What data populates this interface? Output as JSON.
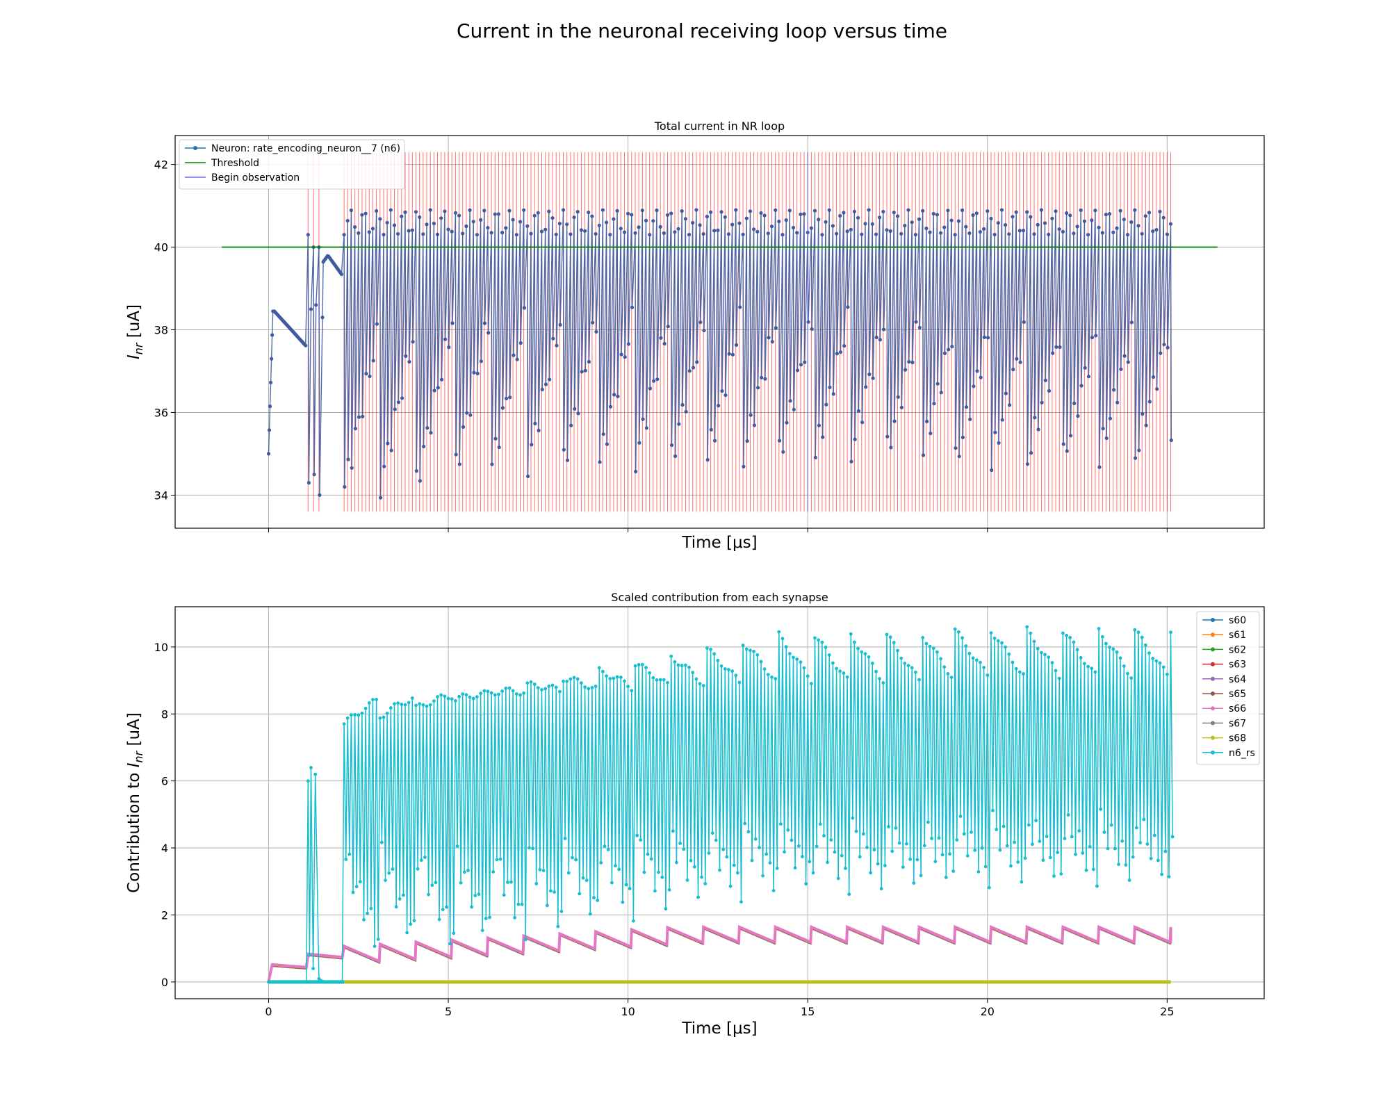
{
  "figure": {
    "title": "Current in the neuronal receiving loop versus time"
  },
  "chart_data": [
    {
      "type": "line",
      "title": "Total current in NR loop",
      "xlabel": "Time [μs]",
      "ylabel_prefix": "I",
      "ylabel_sub": "nr",
      "ylabel_suffix": " [uA]",
      "xlim": [
        -2.6,
        27.7
      ],
      "ylim": [
        33.2,
        42.7
      ],
      "xticks": [
        0,
        5,
        10,
        15,
        20,
        25
      ],
      "show_xtick_labels": false,
      "yticks": [
        34,
        36,
        38,
        40,
        42
      ],
      "ytick_labels": [
        "34",
        "36",
        "38",
        "40",
        "42"
      ],
      "grid": true,
      "legend_position": "upper-left",
      "threshold": 40,
      "threshold_x": [
        -1.3,
        26.4
      ],
      "observation_start_us": 1.07,
      "observation_end_us": 25.1,
      "early_spike_times_us": [
        1.1,
        1.25,
        1.4
      ],
      "spike_period_us": 0.1,
      "spike_ymin": 33.6,
      "spike_ymax": 42.3,
      "trace_start_value": 35.0,
      "trace_rise_peak": 38.45,
      "trace_decay_value": 37.6,
      "oscillation_bottom_start": 34.2,
      "oscillation_bottom_end": 35.0,
      "oscillation_top": 40.6,
      "mid_reset_level": 38.2,
      "series": [
        {
          "name": "Neuron: rate_encoding_neuron__7 (n6)",
          "color": "#1f77b4",
          "marker": "circle"
        },
        {
          "name": "Threshold",
          "color": "#008000"
        },
        {
          "name": "Begin observation",
          "color": "#6a6aff"
        }
      ],
      "spike_color": "#ff0000"
    },
    {
      "type": "line",
      "title": "Scaled contribution from each synapse",
      "xlabel": "Time [μs]",
      "ylabel_prefix": "Contribution to I",
      "ylabel_sub": "nr",
      "ylabel_suffix": " [uA]",
      "xlim": [
        -2.6,
        27.7
      ],
      "ylim": [
        -0.5,
        11.2
      ],
      "xticks": [
        0,
        5,
        10,
        15,
        20,
        25
      ],
      "xtick_labels": [
        "0",
        "5",
        "10",
        "15",
        "20",
        "25"
      ],
      "yticks": [
        0,
        2,
        4,
        6,
        8,
        10
      ],
      "ytick_labels": [
        "0",
        "2",
        "4",
        "6",
        "8",
        "10"
      ],
      "grid": true,
      "legend_position": "upper-right",
      "cycle_start_us": 2.1,
      "cycle_period_us": 1.0,
      "cycle_end_us": 25.1,
      "synapse_level_start": 1.05,
      "synapse_level_end": 1.62,
      "synapse_drop": 0.45,
      "n6_rs_max_start": 7.7,
      "n6_rs_max_end": 10.5,
      "n6_rs_min_start": 0.8,
      "n6_rs_min_end": 3.1,
      "series": [
        {
          "name": "s60",
          "color": "#1f77b4"
        },
        {
          "name": "s61",
          "color": "#ff7f0e"
        },
        {
          "name": "s62",
          "color": "#2ca02c"
        },
        {
          "name": "s63",
          "color": "#d62728"
        },
        {
          "name": "s64",
          "color": "#9467bd"
        },
        {
          "name": "s65",
          "color": "#8c564b"
        },
        {
          "name": "s66",
          "color": "#e377c2"
        },
        {
          "name": "s67",
          "color": "#7f7f7f"
        },
        {
          "name": "s68",
          "color": "#bcbd22"
        },
        {
          "name": "n6_rs",
          "color": "#17becf"
        }
      ]
    }
  ]
}
